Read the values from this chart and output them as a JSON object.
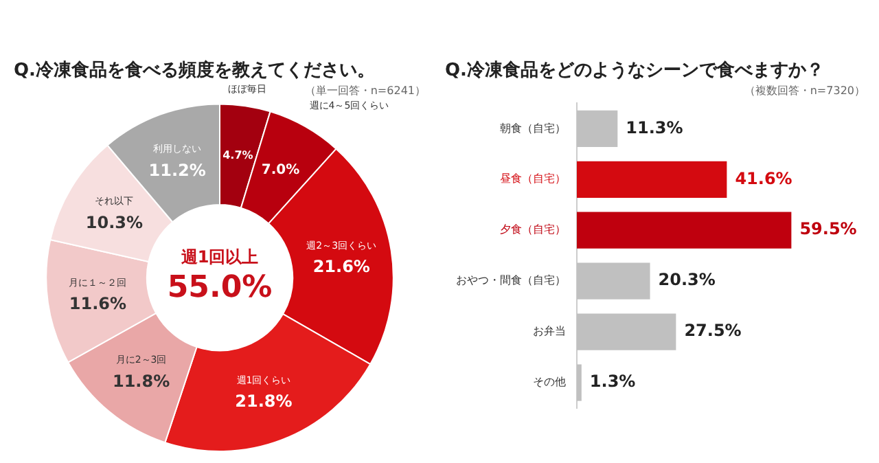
{
  "chart_data": [
    {
      "type": "donut",
      "title": "Q.冷凍食品を食べる頻度を教えてください。",
      "subtitle": "（単一回答・n=6241）",
      "categories": [
        "ほぼ毎日",
        "週に4～5回くらい",
        "週2～3回くらい",
        "週1回くらい",
        "月に2～3回",
        "月に１～２回",
        "それ以下",
        "利用しない"
      ],
      "values": [
        4.7,
        7.0,
        21.6,
        21.8,
        11.8,
        11.6,
        10.3,
        11.2
      ],
      "value_labels": [
        "4.7%",
        "7.0%",
        "21.6%",
        "21.8%",
        "11.8%",
        "11.6%",
        "10.3%",
        "11.2%"
      ],
      "colors": [
        "#a3000f",
        "#b8000e",
        "#d40a10",
        "#e41c1c",
        "#e9a7a7",
        "#f2c9c9",
        "#f7dfdf",
        "#a9a9a9"
      ],
      "annotations": [
        "週1回以上",
        "55.0%"
      ]
    },
    {
      "type": "bar",
      "orientation": "horizontal",
      "title": "Q.冷凍食品をどのようなシーンで食べますか？",
      "subtitle": "（複数回答・n=7320）",
      "categories": [
        "朝食（自宅）",
        "昼食（自宅）",
        "夕食（自宅）",
        "おやつ・間食（自宅）",
        "お弁当",
        "その他"
      ],
      "values": [
        11.3,
        41.6,
        59.5,
        20.3,
        27.5,
        1.3
      ],
      "value_labels": [
        "11.3%",
        "41.6%",
        "59.5%",
        "20.3%",
        "27.5%",
        "1.3%"
      ],
      "colors": [
        "#c0c0c0",
        "#d40a10",
        "#bf000e",
        "#c0c0c0",
        "#c0c0c0",
        "#c0c0c0"
      ]
    }
  ]
}
